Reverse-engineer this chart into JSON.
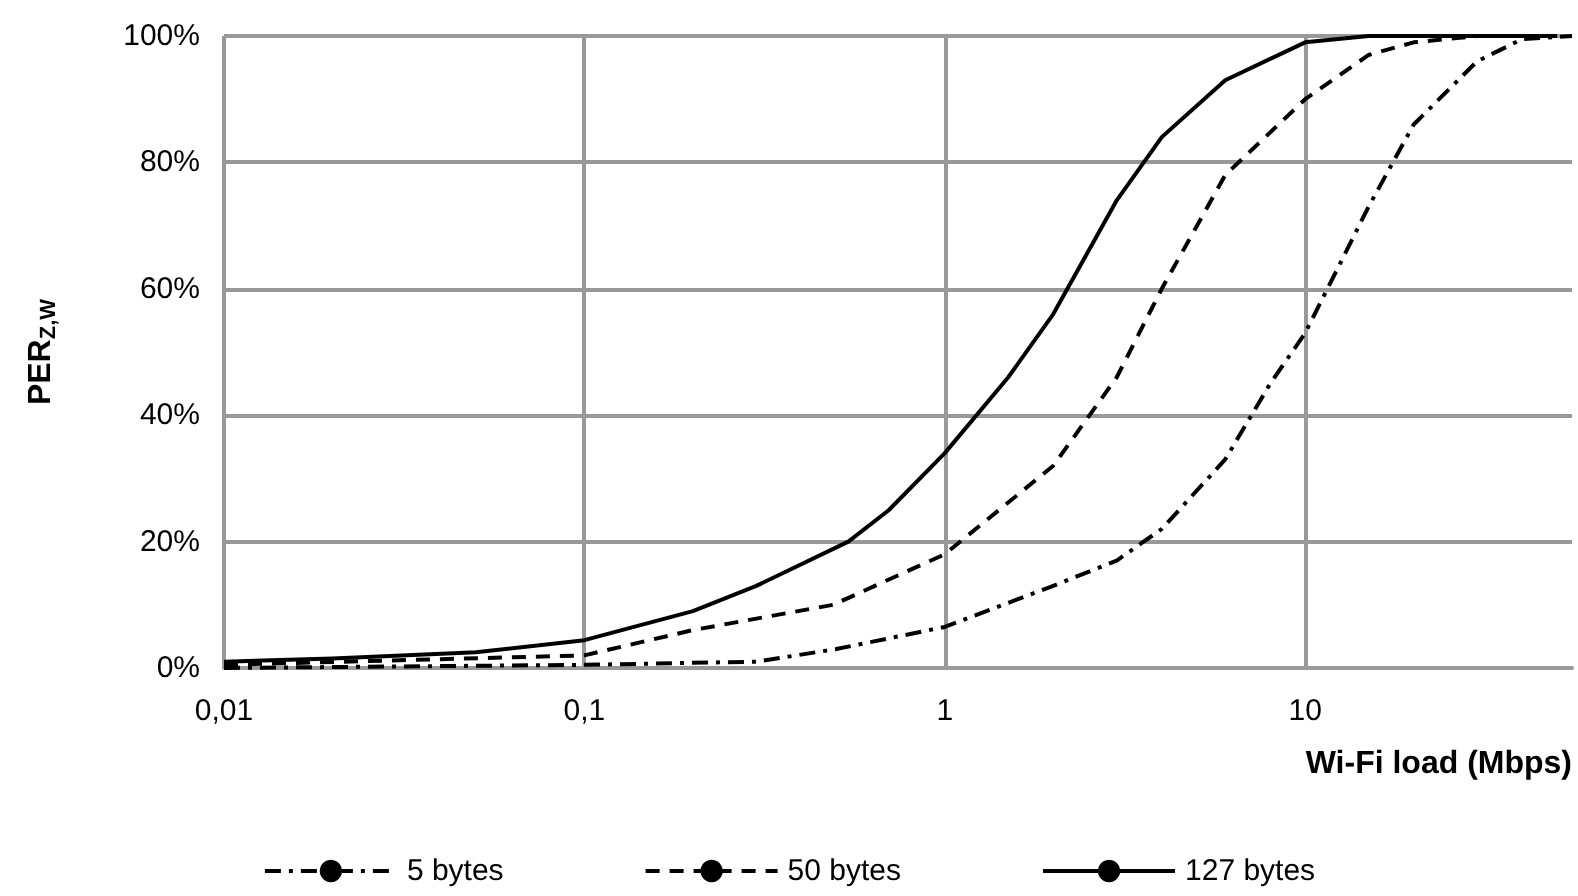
{
  "chart_data": {
    "type": "line",
    "xlabel": "Wi-Fi load (Mbps)",
    "ylabel": "PER$_{Z,W}$",
    "log": "x",
    "xlim": [
      0.01,
      55
    ],
    "xticks": [
      {
        "value": 0.01,
        "label": "0,01"
      },
      {
        "value": 0.1,
        "label": "0,1"
      },
      1,
      10
    ],
    "ylim": [
      0,
      100
    ],
    "yticks": [
      {
        "value": 0,
        "label": "0%"
      },
      {
        "value": 20,
        "label": "20%"
      },
      {
        "value": 40,
        "label": "40%"
      },
      {
        "value": 60,
        "label": "60%"
      },
      {
        "value": 80,
        "label": "80%"
      },
      {
        "value": 100,
        "label": "100%"
      }
    ],
    "grid": true,
    "legend": "bottom",
    "marker": "none",
    "series": [
      {
        "name": "5 bytes",
        "color": "#000000",
        "line_style": "dotted",
        "x": [
          0.01,
          0.1,
          0.3,
          0.5,
          1,
          2,
          3,
          4,
          6,
          8,
          10,
          15,
          20,
          30,
          40,
          55
        ],
        "values": [
          0,
          0.5,
          1,
          3,
          6.5,
          13,
          17,
          22,
          33,
          45,
          53,
          73,
          86,
          96,
          99.5,
          100
        ]
      },
      {
        "name": "50 bytes",
        "color": "#000000",
        "line_style": "dashed",
        "x": [
          0.01,
          0.1,
          0.2,
          0.49,
          1,
          2,
          3,
          4,
          6,
          10,
          15,
          20,
          30,
          45
        ],
        "values": [
          0.5,
          2,
          6,
          10,
          18,
          32,
          46,
          60,
          78,
          90,
          97,
          99,
          100,
          100
        ]
      },
      {
        "name": "127 bytes",
        "color": "#000000",
        "line_style": "solid",
        "x": [
          0.01,
          0.02,
          0.05,
          0.1,
          0.2,
          0.3,
          0.54,
          0.7,
          1,
          1.5,
          2,
          3,
          4,
          6,
          10,
          15,
          50
        ],
        "values": [
          1,
          1.5,
          2.5,
          4.4,
          9,
          13,
          20,
          25,
          34,
          46,
          56,
          74,
          84,
          93,
          99,
          100,
          100
        ]
      }
    ]
  }
}
